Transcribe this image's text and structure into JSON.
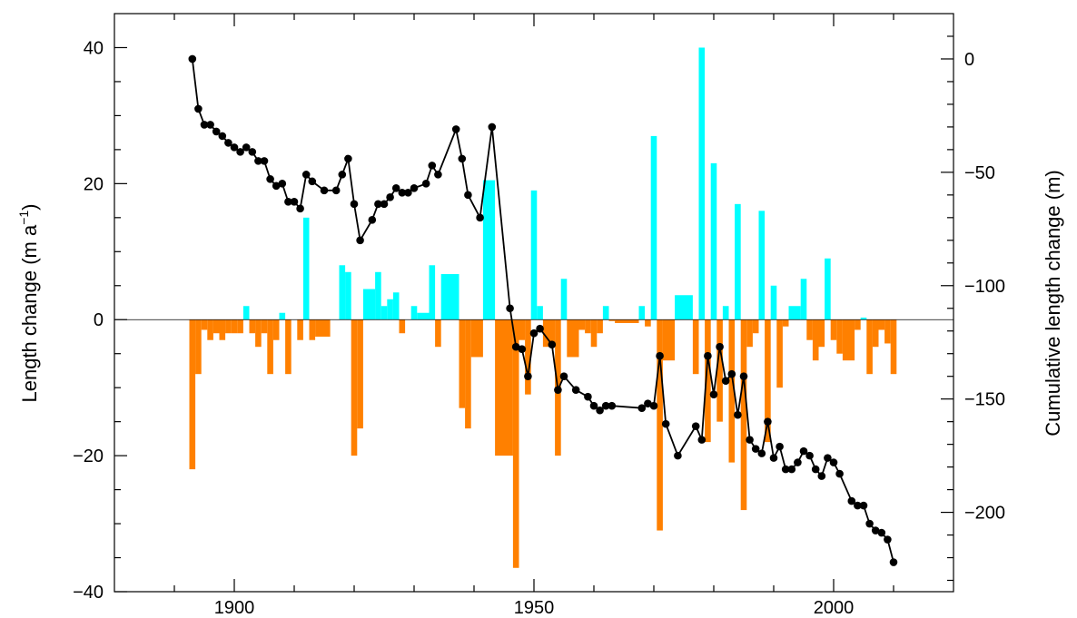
{
  "chart_data": {
    "type": "bar",
    "title": "",
    "xlabel": "",
    "ylabel_left": "Length change (m a",
    "ylabel_left_sup": "−1",
    "ylabel_left_end": ")",
    "ylabel_right": "Cumulative length change (m)",
    "xlim": [
      1880,
      2020
    ],
    "ylim_left": [
      -40,
      45
    ],
    "ylim_right": [
      -235,
      20
    ],
    "x_ticks": [
      1900,
      1950,
      2000
    ],
    "x_tick_labels": [
      "1900",
      "1950",
      "2000"
    ],
    "y_left_ticks": [
      40,
      20,
      0,
      -20,
      -40
    ],
    "y_left_tick_labels": [
      "40",
      "20",
      "0",
      "−20",
      "−40"
    ],
    "y_right_ticks": [
      0,
      -50,
      -100,
      -150,
      -200
    ],
    "y_right_tick_labels": [
      "0",
      "−50",
      "−100",
      "−150",
      "−200"
    ],
    "colors": {
      "advance": "#00ffff",
      "retreat": "#ff8000",
      "cumulative": "#000000"
    },
    "series": [
      {
        "type": "bar",
        "axis": "left",
        "note": "annual length change; positive = advance (cyan), negative = retreat (orange)",
        "bars": [
          {
            "x0": 1892.5,
            "x1": 1893.5,
            "value": -22
          },
          {
            "x0": 1893.5,
            "x1": 1894.5,
            "value": -8
          },
          {
            "x0": 1894.5,
            "x1": 1895.5,
            "value": -1.5
          },
          {
            "x0": 1895.5,
            "x1": 1896.5,
            "value": -3
          },
          {
            "x0": 1896.5,
            "x1": 1897.5,
            "value": -2
          },
          {
            "x0": 1897.5,
            "x1": 1898.5,
            "value": -3
          },
          {
            "x0": 1898.5,
            "x1": 1899.5,
            "value": -2
          },
          {
            "x0": 1899.5,
            "x1": 1900.5,
            "value": -2
          },
          {
            "x0": 1900.5,
            "x1": 1901.5,
            "value": -2
          },
          {
            "x0": 1901.5,
            "x1": 1902.5,
            "value": 2
          },
          {
            "x0": 1902.5,
            "x1": 1903.5,
            "value": -2
          },
          {
            "x0": 1903.5,
            "x1": 1904.5,
            "value": -4
          },
          {
            "x0": 1904.5,
            "x1": 1905.5,
            "value": -2
          },
          {
            "x0": 1905.5,
            "x1": 1906.5,
            "value": -8
          },
          {
            "x0": 1906.5,
            "x1": 1907.5,
            "value": -3
          },
          {
            "x0": 1907.5,
            "x1": 1908.5,
            "value": 1
          },
          {
            "x0": 1908.5,
            "x1": 1909.5,
            "value": -8
          },
          {
            "x0": 1910.5,
            "x1": 1911.5,
            "value": -3
          },
          {
            "x0": 1911.5,
            "x1": 1912.5,
            "value": 15
          },
          {
            "x0": 1912.5,
            "x1": 1913.5,
            "value": -3
          },
          {
            "x0": 1913.5,
            "x1": 1916.0,
            "value": -2.5
          },
          {
            "x0": 1917.5,
            "x1": 1918.5,
            "value": 8
          },
          {
            "x0": 1918.5,
            "x1": 1919.5,
            "value": 7
          },
          {
            "x0": 1919.5,
            "x1": 1920.5,
            "value": -20
          },
          {
            "x0": 1920.5,
            "x1": 1921.5,
            "value": -16
          },
          {
            "x0": 1921.5,
            "x1": 1923.5,
            "value": 4.5
          },
          {
            "x0": 1923.5,
            "x1": 1924.5,
            "value": 7
          },
          {
            "x0": 1924.5,
            "x1": 1925.5,
            "value": 2
          },
          {
            "x0": 1925.5,
            "x1": 1926.5,
            "value": 3
          },
          {
            "x0": 1926.5,
            "x1": 1927.5,
            "value": 4
          },
          {
            "x0": 1927.5,
            "x1": 1928.5,
            "value": -2
          },
          {
            "x0": 1929.5,
            "x1": 1930.5,
            "value": 2
          },
          {
            "x0": 1930.5,
            "x1": 1932.5,
            "value": 1
          },
          {
            "x0": 1932.5,
            "x1": 1933.5,
            "value": 8
          },
          {
            "x0": 1933.5,
            "x1": 1934.5,
            "value": -4
          },
          {
            "x0": 1934.5,
            "x1": 1937.5,
            "value": 6.7
          },
          {
            "x0": 1937.5,
            "x1": 1938.5,
            "value": -13
          },
          {
            "x0": 1938.5,
            "x1": 1939.5,
            "value": -16
          },
          {
            "x0": 1939.5,
            "x1": 1941.5,
            "value": -5.5
          },
          {
            "x0": 1941.5,
            "x1": 1943.5,
            "value": 20.5
          },
          {
            "x0": 1943.5,
            "x1": 1946.5,
            "value": -20
          },
          {
            "x0": 1946.5,
            "x1": 1947.5,
            "value": -36.5
          },
          {
            "x0": 1947.5,
            "x1": 1948.5,
            "value": -3
          },
          {
            "x0": 1948.5,
            "x1": 1949.5,
            "value": -11
          },
          {
            "x0": 1949.5,
            "x1": 1950.5,
            "value": 19
          },
          {
            "x0": 1950.5,
            "x1": 1951.5,
            "value": 2
          },
          {
            "x0": 1951.5,
            "x1": 1953.5,
            "value": -4
          },
          {
            "x0": 1953.5,
            "x1": 1954.5,
            "value": -20
          },
          {
            "x0": 1954.5,
            "x1": 1955.5,
            "value": 6
          },
          {
            "x0": 1955.5,
            "x1": 1957.5,
            "value": -5.5
          },
          {
            "x0": 1957.5,
            "x1": 1958.5,
            "value": -1.5
          },
          {
            "x0": 1958.5,
            "x1": 1959.5,
            "value": -2
          },
          {
            "x0": 1959.5,
            "x1": 1960.5,
            "value": -4
          },
          {
            "x0": 1960.5,
            "x1": 1961.5,
            "value": -2
          },
          {
            "x0": 1961.5,
            "x1": 1962.5,
            "value": 2
          },
          {
            "x0": 1962.5,
            "x1": 1963.5,
            "value": -0.2
          },
          {
            "x0": 1963.5,
            "x1": 1967.5,
            "value": -0.5
          },
          {
            "x0": 1967.5,
            "x1": 1968.5,
            "value": 2
          },
          {
            "x0": 1968.5,
            "x1": 1969.5,
            "value": -1
          },
          {
            "x0": 1969.5,
            "x1": 1970.5,
            "value": 27
          },
          {
            "x0": 1970.5,
            "x1": 1971.5,
            "value": -31
          },
          {
            "x0": 1971.5,
            "x1": 1973.5,
            "value": -6
          },
          {
            "x0": 1973.5,
            "x1": 1976.5,
            "value": 3.6
          },
          {
            "x0": 1976.5,
            "x1": 1977.5,
            "value": -8
          },
          {
            "x0": 1977.5,
            "x1": 1978.5,
            "value": 40
          },
          {
            "x0": 1978.5,
            "x1": 1979.5,
            "value": -18
          },
          {
            "x0": 1979.5,
            "x1": 1980.5,
            "value": 23
          },
          {
            "x0": 1980.5,
            "x1": 1981.5,
            "value": -15
          },
          {
            "x0": 1981.5,
            "x1": 1982.5,
            "value": 2
          },
          {
            "x0": 1982.5,
            "x1": 1983.5,
            "value": -21
          },
          {
            "x0": 1983.5,
            "x1": 1984.5,
            "value": 17
          },
          {
            "x0": 1984.5,
            "x1": 1985.5,
            "value": -28
          },
          {
            "x0": 1985.5,
            "x1": 1986.5,
            "value": -4
          },
          {
            "x0": 1986.5,
            "x1": 1987.5,
            "value": -2
          },
          {
            "x0": 1987.5,
            "x1": 1988.5,
            "value": 16
          },
          {
            "x0": 1988.5,
            "x1": 1989.5,
            "value": -18
          },
          {
            "x0": 1989.5,
            "x1": 1990.5,
            "value": 5
          },
          {
            "x0": 1990.5,
            "x1": 1991.5,
            "value": -10
          },
          {
            "x0": 1991.5,
            "x1": 1992.5,
            "value": -1
          },
          {
            "x0": 1992.5,
            "x1": 1994.5,
            "value": 2
          },
          {
            "x0": 1994.5,
            "x1": 1995.5,
            "value": 6
          },
          {
            "x0": 1995.5,
            "x1": 1996.5,
            "value": -3
          },
          {
            "x0": 1996.5,
            "x1": 1997.5,
            "value": -6
          },
          {
            "x0": 1997.5,
            "x1": 1998.5,
            "value": -4
          },
          {
            "x0": 1998.5,
            "x1": 1999.5,
            "value": 9
          },
          {
            "x0": 1999.5,
            "x1": 2000.5,
            "value": -3
          },
          {
            "x0": 2000.5,
            "x1": 2001.5,
            "value": -5
          },
          {
            "x0": 2001.5,
            "x1": 2003.5,
            "value": -6
          },
          {
            "x0": 2003.5,
            "x1": 2004.5,
            "value": -1.5
          },
          {
            "x0": 2004.5,
            "x1": 2005.5,
            "value": 0.3
          },
          {
            "x0": 2005.5,
            "x1": 2006.5,
            "value": -8
          },
          {
            "x0": 2006.5,
            "x1": 2007.5,
            "value": -4
          },
          {
            "x0": 2007.5,
            "x1": 2008.5,
            "value": -1.5
          },
          {
            "x0": 2008.5,
            "x1": 2009.5,
            "value": -3.5
          },
          {
            "x0": 2009.5,
            "x1": 2010.5,
            "value": -8
          }
        ]
      },
      {
        "type": "line",
        "axis": "right",
        "note": "cumulative length change with markers",
        "points": [
          [
            1893,
            0
          ],
          [
            1894,
            -22
          ],
          [
            1895,
            -29
          ],
          [
            1896,
            -29
          ],
          [
            1897,
            -32
          ],
          [
            1898,
            -34
          ],
          [
            1899,
            -37
          ],
          [
            1900,
            -39
          ],
          [
            1901,
            -41
          ],
          [
            1902,
            -39
          ],
          [
            1903,
            -41
          ],
          [
            1904,
            -45
          ],
          [
            1905,
            -45
          ],
          [
            1906,
            -53
          ],
          [
            1907,
            -56
          ],
          [
            1908,
            -55
          ],
          [
            1909,
            -63
          ],
          [
            1910,
            -63
          ],
          [
            1911,
            -66
          ],
          [
            1912,
            -51
          ],
          [
            1913,
            -54
          ],
          [
            1915,
            -58
          ],
          [
            1917,
            -58
          ],
          [
            1918,
            -51
          ],
          [
            1919,
            -44
          ],
          [
            1920,
            -64
          ],
          [
            1921,
            -80
          ],
          [
            1923,
            -71
          ],
          [
            1924,
            -64
          ],
          [
            1925,
            -64
          ],
          [
            1926,
            -61
          ],
          [
            1927,
            -57
          ],
          [
            1928,
            -59
          ],
          [
            1929,
            -59
          ],
          [
            1930,
            -57
          ],
          [
            1932,
            -55
          ],
          [
            1933,
            -47
          ],
          [
            1934,
            -51
          ],
          [
            1937,
            -31
          ],
          [
            1938,
            -44
          ],
          [
            1939,
            -60
          ],
          [
            1941,
            -70
          ],
          [
            1943,
            -30
          ],
          [
            1946,
            -110
          ],
          [
            1947,
            -127
          ],
          [
            1948,
            -128
          ],
          [
            1949,
            -140
          ],
          [
            1950,
            -121
          ],
          [
            1951,
            -119
          ],
          [
            1953,
            -126
          ],
          [
            1954,
            -146
          ],
          [
            1955,
            -140
          ],
          [
            1957,
            -146
          ],
          [
            1959,
            -149
          ],
          [
            1960,
            -153
          ],
          [
            1961,
            -155
          ],
          [
            1962,
            -153
          ],
          [
            1963,
            -153
          ],
          [
            1968,
            -154
          ],
          [
            1969,
            -152
          ],
          [
            1970,
            -153
          ],
          [
            1971,
            -131
          ],
          [
            1972,
            -161
          ],
          [
            1974,
            -175
          ],
          [
            1977,
            -162
          ],
          [
            1978,
            -168
          ],
          [
            1979,
            -131
          ],
          [
            1980,
            -148
          ],
          [
            1981,
            -127
          ],
          [
            1982,
            -142
          ],
          [
            1983,
            -139
          ],
          [
            1984,
            -157
          ],
          [
            1985,
            -140
          ],
          [
            1986,
            -168
          ],
          [
            1987,
            -172
          ],
          [
            1988,
            -174
          ],
          [
            1989,
            -160
          ],
          [
            1990,
            -176
          ],
          [
            1991,
            -171
          ],
          [
            1992,
            -181
          ],
          [
            1993,
            -181
          ],
          [
            1994,
            -178
          ],
          [
            1995,
            -173
          ],
          [
            1996,
            -175
          ],
          [
            1997,
            -181
          ],
          [
            1998,
            -184
          ],
          [
            1999,
            -176
          ],
          [
            2000,
            -178
          ],
          [
            2001,
            -183
          ],
          [
            2003,
            -195
          ],
          [
            2004,
            -197
          ],
          [
            2005,
            -197
          ],
          [
            2006,
            -205
          ],
          [
            2007,
            -208
          ],
          [
            2008,
            -209
          ],
          [
            2009,
            -212
          ],
          [
            2010,
            -222
          ]
        ]
      }
    ]
  }
}
